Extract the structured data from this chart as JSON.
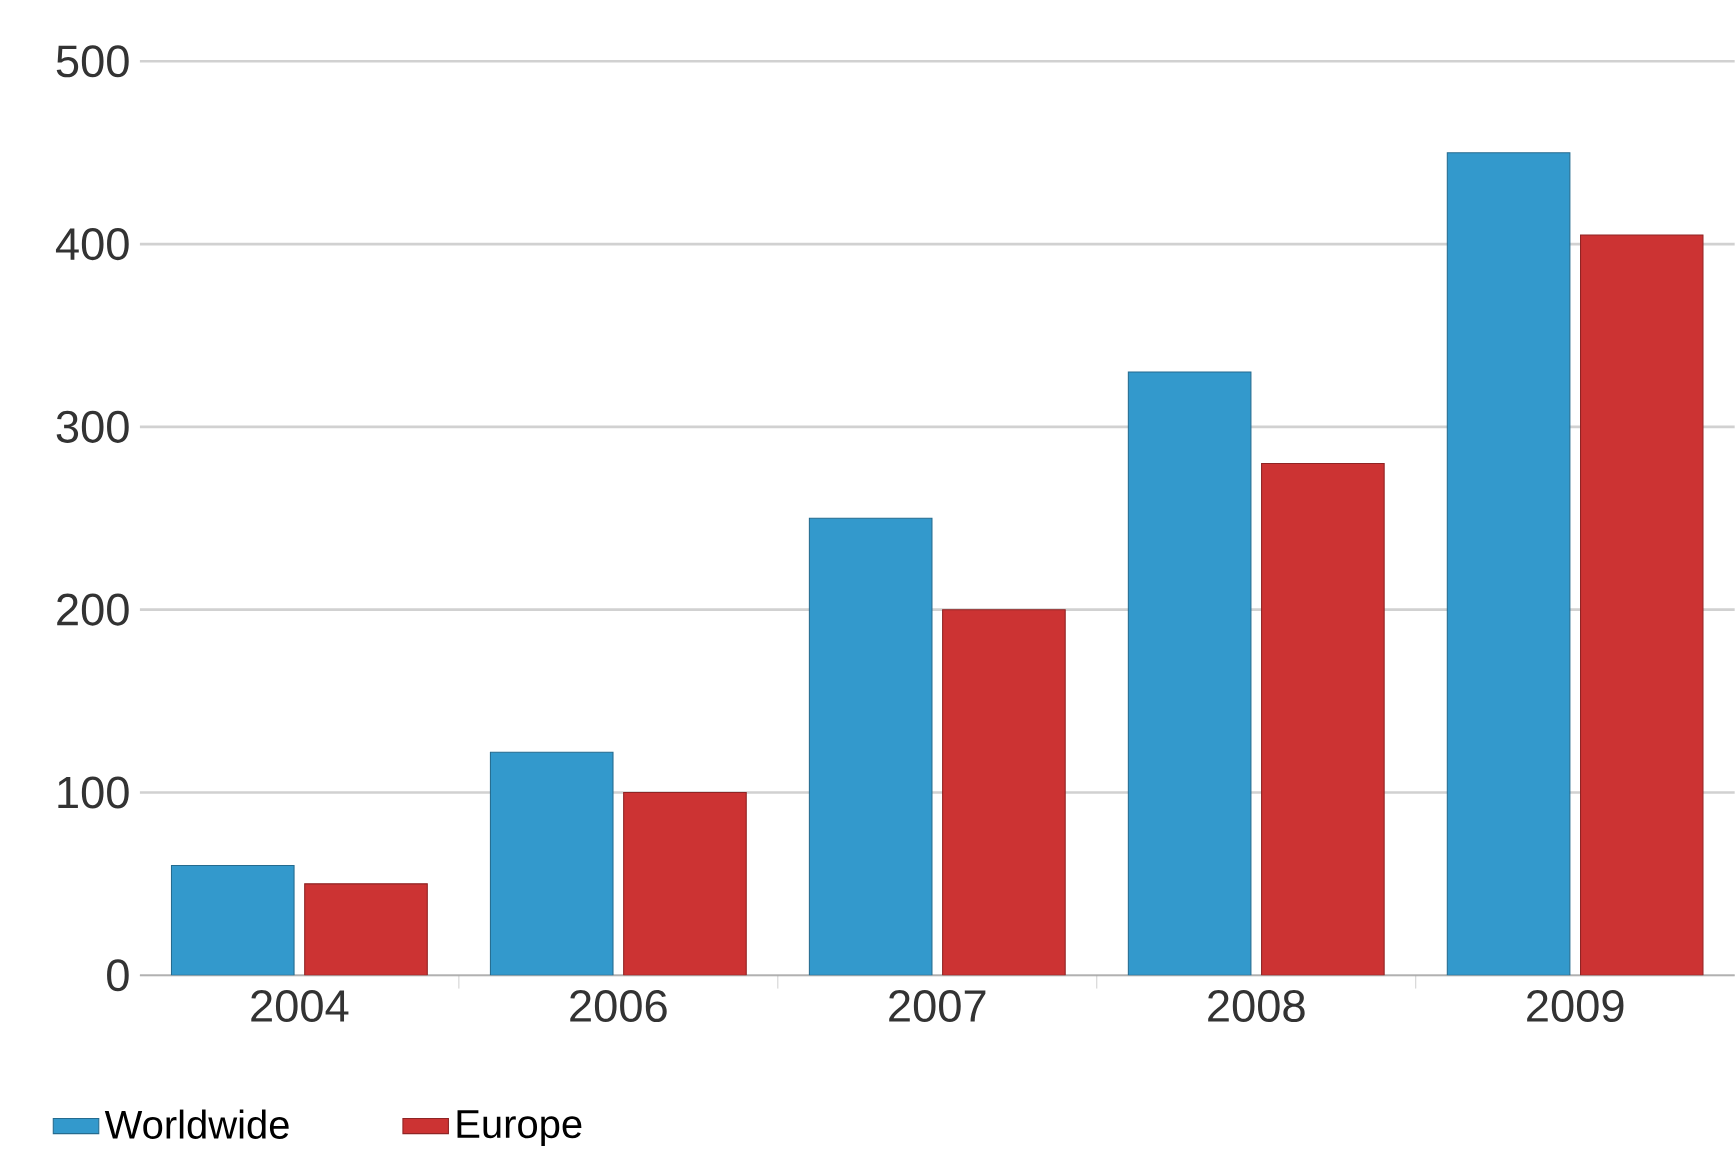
{
  "chart_data": {
    "type": "bar",
    "categories": [
      "2004",
      "2006",
      "2007",
      "2008",
      "2009"
    ],
    "series": [
      {
        "name": "Worldwide",
        "color": "#3399cc",
        "values": [
          60,
          122,
          250,
          330,
          450
        ]
      },
      {
        "name": "Europe",
        "color": "#cc3333",
        "values": [
          50,
          100,
          200,
          280,
          405
        ]
      }
    ],
    "ylim": [
      0,
      500
    ],
    "yticks": [
      0,
      100,
      200,
      300,
      400,
      500
    ],
    "grid": "y",
    "legend": "bottom"
  }
}
